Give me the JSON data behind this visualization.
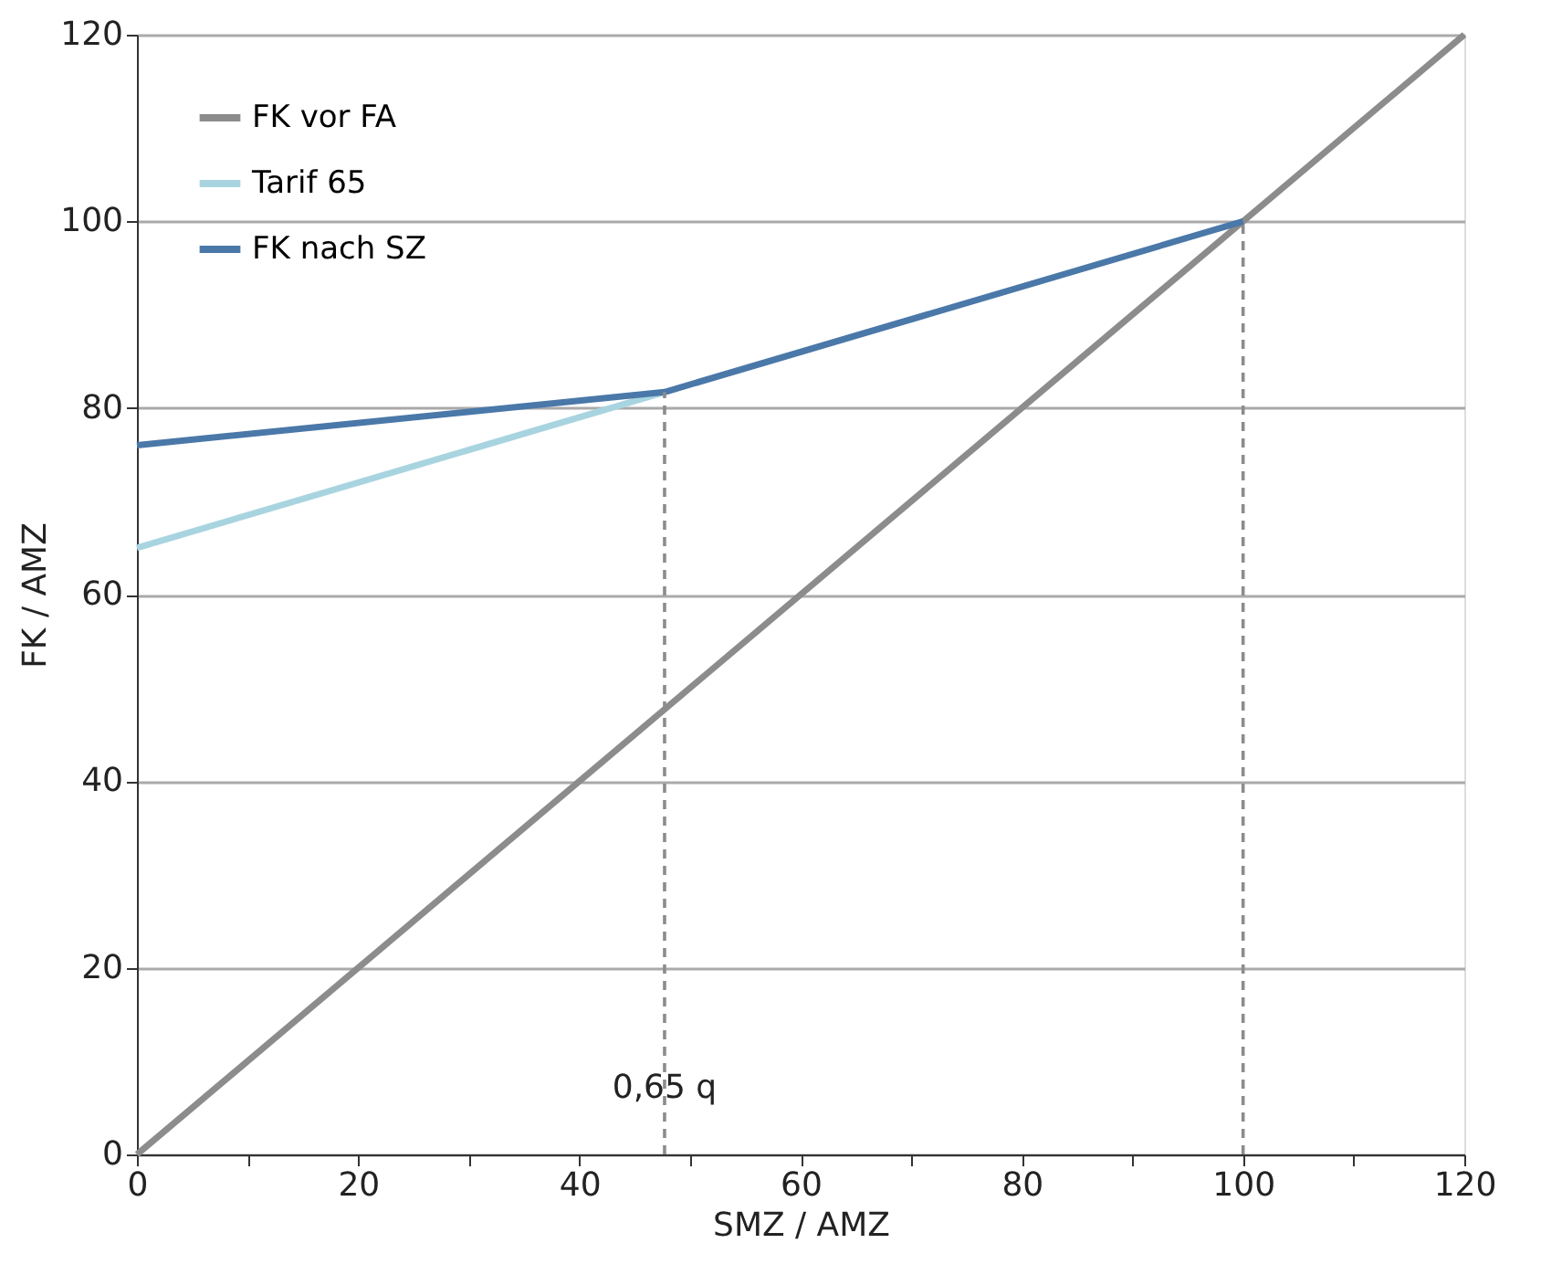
{
  "chart_data": {
    "type": "line",
    "xlabel": "SMZ / AMZ",
    "ylabel": "FK / AMZ",
    "xlim": [
      0,
      120
    ],
    "ylim": [
      0,
      120
    ],
    "xticks": [
      0,
      {
        "value": 10,
        "label": null
      },
      20,
      {
        "value": 30,
        "label": null
      },
      40,
      {
        "value": 50,
        "label": null
      },
      60,
      {
        "value": 70,
        "label": null
      },
      80,
      {
        "value": 90,
        "label": null
      },
      100,
      {
        "value": 110,
        "label": null
      },
      120
    ],
    "yticks": [
      0,
      20,
      40,
      60,
      80,
      100,
      120
    ],
    "grid": "y",
    "legend": "top left",
    "marker": "none",
    "series": [
      {
        "name": "FK vor FA",
        "color": "#8c8c8c",
        "x": [
          0,
          120
        ],
        "values": [
          0,
          120
        ]
      },
      {
        "name": "Tarif 65",
        "color": "#a8d4e0",
        "x": [
          0,
          47.7
        ],
        "values": [
          65,
          81.7
        ]
      },
      {
        "name": "FK nach SZ",
        "color": "#4a78a8",
        "x": [
          0,
          47.7,
          100
        ],
        "values": [
          76,
          81.7,
          100
        ]
      },
      {
        "color": "#8c8c8c",
        "line_style": "dashed",
        "x": [
          47.7,
          47.7
        ],
        "values": [
          0,
          81.7
        ]
      },
      {
        "color": "#8c8c8c",
        "line_style": "dashed",
        "x": [
          100,
          100
        ],
        "values": [
          0,
          100
        ]
      }
    ],
    "annotations": [
      {
        "text": "0,65 q",
        "x": 47.7,
        "y": 7
      }
    ]
  }
}
